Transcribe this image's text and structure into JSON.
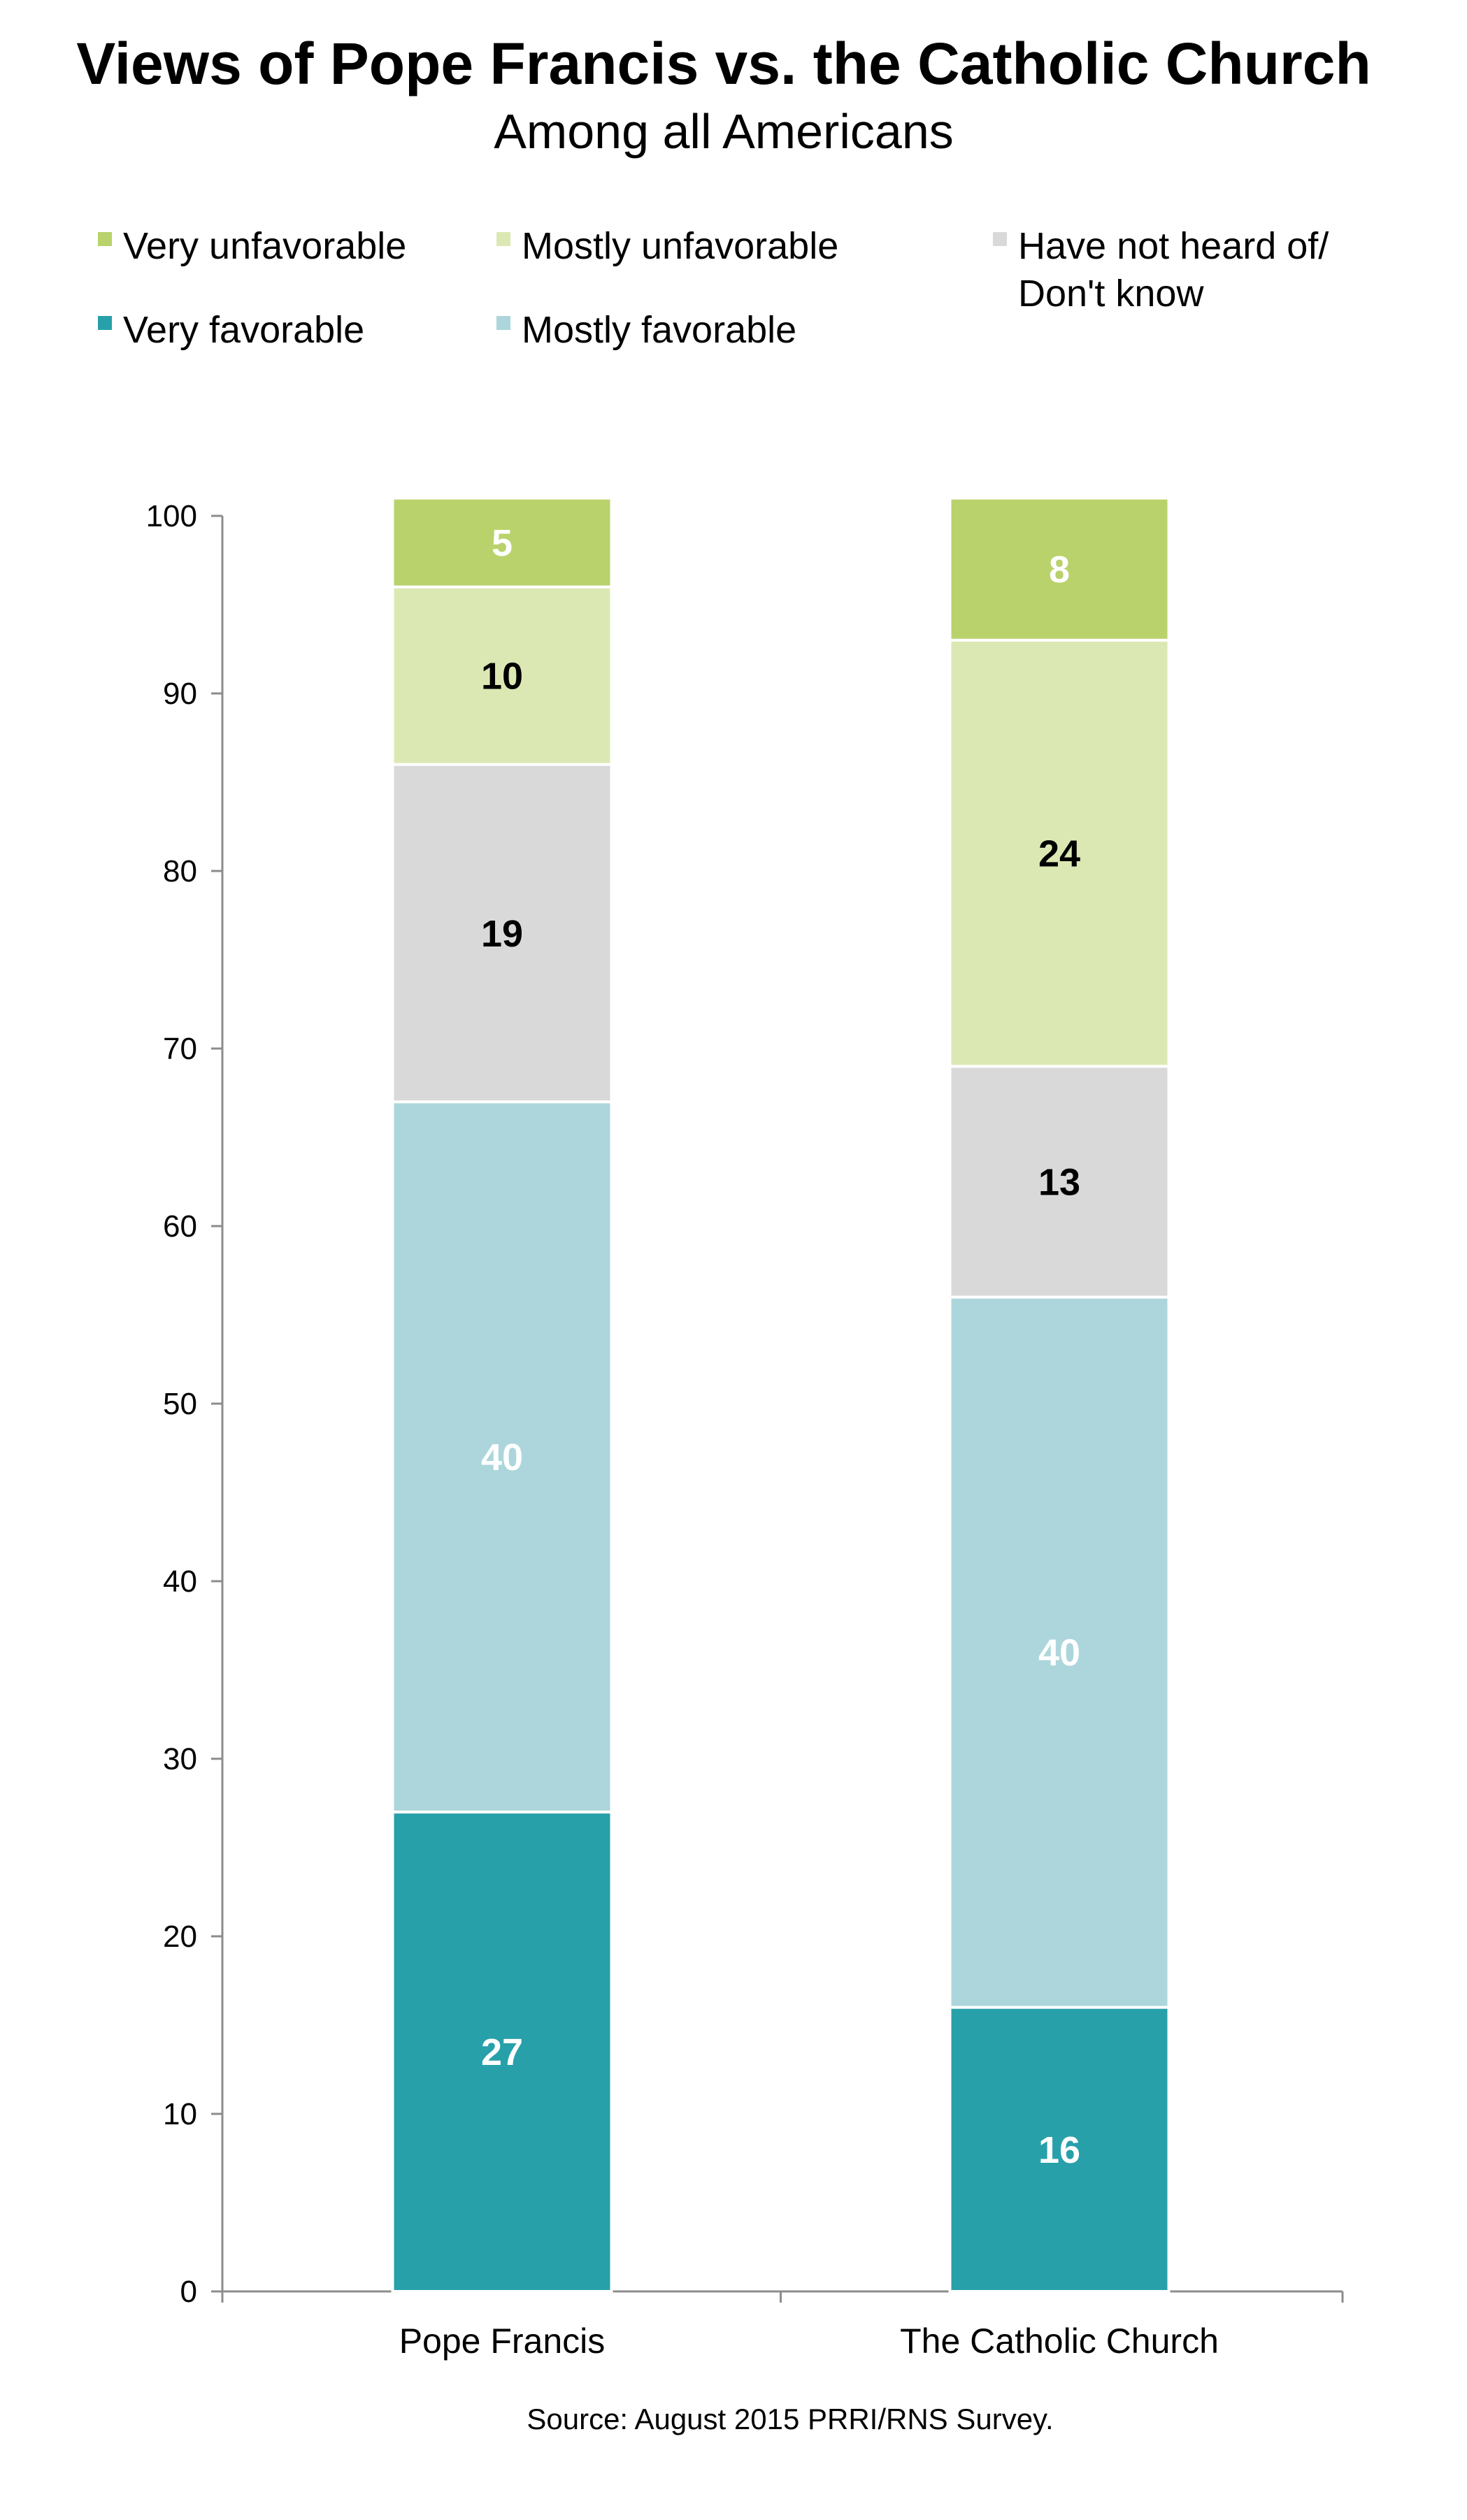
{
  "chart_data": {
    "type": "bar",
    "stacked": true,
    "title": "Views of Pope Francis vs. the Catholic Church",
    "subtitle": "Among all Americans",
    "categories": [
      "Pope Francis",
      "The Catholic Church"
    ],
    "series": [
      {
        "name": "Very favorable",
        "values": [
          27,
          16
        ],
        "color": "#27a0aa",
        "label_color": "#ffffff"
      },
      {
        "name": "Mostly favorable",
        "values": [
          40,
          40
        ],
        "color": "#acd6db",
        "label_color": "#ffffff"
      },
      {
        "name": "Have not heard of/ Don't know",
        "values": [
          19,
          13
        ],
        "color": "#d9d9d9",
        "label_color": "#000000"
      },
      {
        "name": "Mostly unfavorable",
        "values": [
          10,
          24
        ],
        "color": "#dbe8b3",
        "label_color": "#000000"
      },
      {
        "name": "Very unfavorable",
        "values": [
          5,
          8
        ],
        "color": "#b9d26b",
        "label_color": "#ffffff"
      }
    ],
    "ylim": [
      0,
      100
    ],
    "yticks": [
      0,
      10,
      20,
      30,
      40,
      50,
      60,
      70,
      80,
      90,
      100
    ],
    "xlabel": "",
    "ylabel": "",
    "grid": false,
    "legend": {
      "placement": "top",
      "order": [
        [
          "Very unfavorable",
          "Mostly unfavorable",
          "Have not heard of/ Don't know"
        ],
        [
          "Very favorable",
          "Mostly favorable"
        ]
      ]
    },
    "source": "Source: August 2015 PRRI/RNS Survey."
  }
}
